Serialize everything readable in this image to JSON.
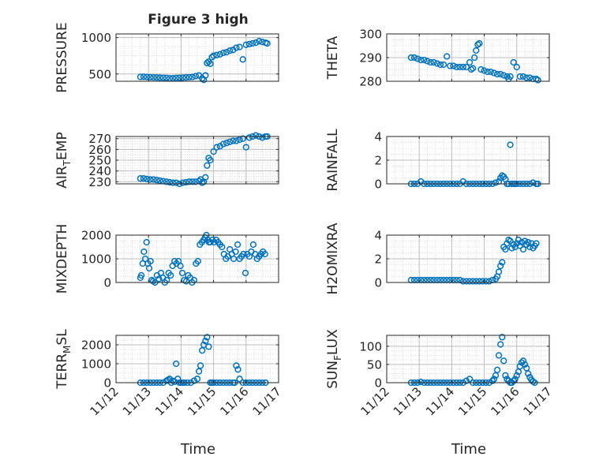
{
  "figure_title": "Figure 3 high",
  "chart_data": [
    {
      "type": "scatter",
      "ylabel": "PRESSURE",
      "ylabel_sub": "",
      "ylabel_tail": "",
      "ylim": [
        400,
        1050
      ],
      "yticks": [
        500,
        1000
      ],
      "xlim": [
        0,
        5
      ],
      "xticks": [
        "11/12",
        "11/13",
        "11/14",
        "11/15",
        "11/16",
        "11/17"
      ],
      "grid": true,
      "marker": "circle-open",
      "color": "#0072BD",
      "x": [
        0.75,
        0.85,
        0.95,
        1.05,
        1.15,
        1.25,
        1.35,
        1.45,
        1.55,
        1.65,
        1.75,
        1.85,
        1.95,
        2.05,
        2.15,
        2.25,
        2.35,
        2.45,
        2.55,
        2.65,
        2.7,
        2.75,
        2.8,
        2.85,
        2.9,
        2.95,
        3.0,
        3.1,
        3.2,
        3.3,
        3.4,
        3.5,
        3.6,
        3.7,
        3.8,
        3.9,
        4.0,
        4.1,
        4.2,
        4.3,
        4.4,
        4.5,
        4.6,
        4.65
      ],
      "y": [
        460,
        462,
        458,
        455,
        453,
        452,
        450,
        448,
        446,
        440,
        442,
        445,
        448,
        450,
        452,
        455,
        458,
        470,
        480,
        440,
        420,
        480,
        650,
        670,
        640,
        730,
        750,
        760,
        770,
        790,
        800,
        820,
        830,
        860,
        870,
        700,
        900,
        910,
        920,
        930,
        950,
        940,
        930,
        920
      ]
    },
    {
      "type": "scatter",
      "ylabel": "THETA",
      "ylabel_sub": "",
      "ylabel_tail": "",
      "ylim": [
        280,
        300
      ],
      "yticks": [
        280,
        290,
        300
      ],
      "xlim": [
        0,
        5
      ],
      "xticks": [
        "11/12",
        "11/13",
        "11/14",
        "11/15",
        "11/16",
        "11/17"
      ],
      "grid": true,
      "marker": "circle-open",
      "color": "#0072BD",
      "x": [
        0.75,
        0.85,
        0.95,
        1.05,
        1.15,
        1.25,
        1.35,
        1.45,
        1.55,
        1.65,
        1.75,
        1.85,
        1.95,
        2.05,
        2.15,
        2.25,
        2.35,
        2.45,
        2.55,
        2.6,
        2.65,
        2.7,
        2.75,
        2.8,
        2.85,
        2.9,
        3.0,
        3.1,
        3.2,
        3.3,
        3.4,
        3.5,
        3.6,
        3.7,
        3.75,
        3.8,
        3.9,
        4.0,
        4.1,
        4.2,
        4.3,
        4.4,
        4.5,
        4.6,
        4.65
      ],
      "y": [
        290,
        290,
        289.5,
        289,
        289,
        288.5,
        288,
        288,
        287.5,
        287,
        287,
        290.5,
        286.5,
        286.5,
        286,
        286,
        286,
        286,
        288,
        285,
        285.5,
        290,
        293,
        295.5,
        296,
        285,
        284.5,
        284,
        284,
        283.5,
        283,
        283,
        282.5,
        282,
        281,
        282,
        288,
        286,
        282,
        282,
        281.5,
        281.5,
        281,
        281,
        280.5
      ]
    },
    {
      "type": "scatter",
      "ylabel": "AIR",
      "ylabel_sub": "T",
      "ylabel_tail": "EMP",
      "ylim": [
        228,
        272
      ],
      "yticks": [
        230,
        240,
        250,
        260,
        270
      ],
      "xlim": [
        0,
        5
      ],
      "xticks": [
        "11/12",
        "11/13",
        "11/14",
        "11/15",
        "11/16",
        "11/17"
      ],
      "grid": true,
      "marker": "circle-open",
      "color": "#0072BD",
      "x": [
        0.75,
        0.85,
        0.95,
        1.05,
        1.15,
        1.25,
        1.35,
        1.45,
        1.55,
        1.65,
        1.75,
        1.85,
        1.95,
        2.05,
        2.15,
        2.25,
        2.35,
        2.45,
        2.55,
        2.6,
        2.65,
        2.7,
        2.75,
        2.8,
        2.85,
        2.9,
        3.0,
        3.1,
        3.2,
        3.3,
        3.4,
        3.5,
        3.6,
        3.7,
        3.8,
        3.9,
        4.0,
        4.1,
        4.2,
        4.3,
        4.4,
        4.5,
        4.6,
        4.65
      ],
      "y": [
        233,
        233,
        232.5,
        232,
        232,
        231.5,
        231,
        230.5,
        230,
        229.5,
        229,
        229,
        228,
        229,
        229.5,
        230,
        230,
        230,
        230.5,
        232,
        229,
        230,
        234,
        245,
        252,
        250,
        258,
        262,
        263,
        265,
        266,
        267,
        268,
        268,
        269,
        270,
        262,
        271,
        272,
        273,
        272,
        271,
        272,
        272
      ]
    },
    {
      "type": "scatter",
      "ylabel": "RAINFALL",
      "ylabel_sub": "",
      "ylabel_tail": "",
      "ylim": [
        0,
        4
      ],
      "yticks": [
        0,
        2,
        4
      ],
      "xlim": [
        0,
        5
      ],
      "xticks": [
        "11/12",
        "11/13",
        "11/14",
        "11/15",
        "11/16",
        "11/17"
      ],
      "grid": true,
      "marker": "circle-open",
      "color": "#0072BD",
      "x": [
        0.75,
        0.85,
        0.95,
        1.05,
        1.15,
        1.25,
        1.35,
        1.45,
        1.55,
        1.65,
        1.75,
        1.85,
        1.95,
        2.05,
        2.15,
        2.25,
        2.35,
        2.45,
        2.55,
        2.65,
        2.75,
        2.85,
        2.95,
        3.05,
        3.15,
        3.25,
        3.35,
        3.45,
        3.5,
        3.55,
        3.6,
        3.65,
        3.7,
        3.75,
        3.8,
        3.85,
        3.9,
        3.95,
        4.0,
        4.1,
        4.2,
        4.3,
        4.4,
        4.5,
        4.6,
        4.65
      ],
      "y": [
        0,
        0,
        0,
        0.2,
        0,
        0,
        0,
        0,
        0,
        0,
        0,
        0,
        0,
        0,
        0,
        0,
        0.2,
        0,
        0,
        0,
        0,
        0,
        0,
        0,
        0,
        0,
        0.1,
        0.2,
        0.5,
        0.7,
        0.6,
        0.4,
        0,
        0,
        3.3,
        0,
        0,
        0,
        0,
        0,
        0,
        0,
        0,
        0.1,
        0,
        0
      ]
    },
    {
      "type": "scatter",
      "ylabel": "MIXDEPTH",
      "ylabel_sub": "",
      "ylabel_tail": "",
      "ylim": [
        0,
        2000
      ],
      "yticks": [
        0,
        1000,
        2000
      ],
      "xlim": [
        0,
        5
      ],
      "xticks": [
        "11/12",
        "11/13",
        "11/14",
        "11/15",
        "11/16",
        "11/17"
      ],
      "grid": true,
      "marker": "circle-open",
      "color": "#0072BD",
      "x": [
        0.75,
        0.78,
        0.82,
        0.86,
        0.9,
        0.94,
        0.98,
        1.02,
        1.06,
        1.1,
        1.14,
        1.2,
        1.26,
        1.32,
        1.38,
        1.44,
        1.5,
        1.56,
        1.62,
        1.68,
        1.74,
        1.8,
        1.86,
        1.92,
        1.98,
        2.04,
        2.1,
        2.16,
        2.22,
        2.28,
        2.34,
        2.4,
        2.46,
        2.52,
        2.58,
        2.64,
        2.7,
        2.74,
        2.78,
        2.82,
        2.86,
        2.9,
        2.96,
        3.02,
        3.08,
        3.14,
        3.2,
        3.26,
        3.32,
        3.38,
        3.44,
        3.5,
        3.56,
        3.62,
        3.68,
        3.74,
        3.8,
        3.86,
        3.92,
        3.98,
        4.04,
        4.1,
        4.16,
        4.22,
        4.28,
        4.34,
        4.4,
        4.46,
        4.52,
        4.58
      ],
      "y": [
        200,
        300,
        800,
        1300,
        1000,
        1700,
        800,
        600,
        900,
        100,
        50,
        0,
        300,
        150,
        400,
        200,
        0,
        100,
        400,
        300,
        700,
        900,
        800,
        900,
        700,
        400,
        100,
        50,
        300,
        200,
        0,
        100,
        800,
        900,
        1600,
        1700,
        1800,
        1900,
        2000,
        1800,
        1700,
        1700,
        1800,
        1700,
        1800,
        1700,
        1600,
        1500,
        1200,
        1000,
        1100,
        1400,
        1200,
        1000,
        1300,
        1600,
        1000,
        1100,
        1200,
        400,
        1200,
        1100,
        1300,
        1600,
        1200,
        1000,
        1100,
        1200,
        1300,
        1200
      ]
    },
    {
      "type": "scatter",
      "ylabel": "H2OMIXRA",
      "ylabel_sub": "",
      "ylabel_tail": "",
      "ylim": [
        0,
        4
      ],
      "yticks": [
        0,
        2,
        4
      ],
      "xlim": [
        0,
        5
      ],
      "xticks": [
        "11/12",
        "11/13",
        "11/14",
        "11/15",
        "11/16",
        "11/17"
      ],
      "grid": true,
      "marker": "circle-open",
      "color": "#0072BD",
      "x": [
        0.75,
        0.85,
        0.95,
        1.05,
        1.15,
        1.25,
        1.35,
        1.45,
        1.55,
        1.65,
        1.75,
        1.85,
        1.95,
        2.05,
        2.15,
        2.25,
        2.35,
        2.45,
        2.55,
        2.65,
        2.75,
        2.85,
        2.95,
        3.05,
        3.15,
        3.25,
        3.35,
        3.4,
        3.45,
        3.5,
        3.55,
        3.6,
        3.65,
        3.7,
        3.75,
        3.8,
        3.85,
        3.9,
        3.95,
        4.0,
        4.05,
        4.1,
        4.15,
        4.2,
        4.25,
        4.3,
        4.35,
        4.4,
        4.45,
        4.5,
        4.55,
        4.6
      ],
      "y": [
        0.2,
        0.2,
        0.2,
        0.2,
        0.2,
        0.2,
        0.2,
        0.2,
        0.2,
        0.2,
        0.2,
        0.2,
        0.2,
        0.2,
        0.2,
        0.2,
        0.1,
        0.1,
        0.1,
        0.1,
        0.1,
        0.1,
        0.1,
        0.1,
        0.1,
        0.2,
        0.3,
        0.5,
        0.9,
        1.4,
        1.7,
        3.0,
        2.8,
        3.3,
        3.6,
        3.5,
        2.9,
        3.2,
        3.0,
        3.3,
        3.6,
        3.1,
        3.4,
        2.8,
        3.5,
        3.2,
        3.4,
        3.0,
        3.3,
        2.9,
        3.1,
        3.3
      ]
    },
    {
      "type": "scatter",
      "ylabel": "TERR",
      "ylabel_sub": "M",
      "ylabel_tail": "SL",
      "ylim": [
        0,
        2500
      ],
      "yticks": [
        0,
        1000,
        2000
      ],
      "xlim": [
        0,
        5
      ],
      "xticks": [
        "11/12",
        "11/13",
        "11/14",
        "11/15",
        "11/16",
        "11/17"
      ],
      "grid": true,
      "marker": "circle-open",
      "color": "#0072BD",
      "x": [
        0.75,
        0.85,
        0.95,
        1.05,
        1.15,
        1.25,
        1.35,
        1.45,
        1.55,
        1.6,
        1.65,
        1.7,
        1.75,
        1.8,
        1.85,
        1.9,
        1.95,
        2.0,
        2.05,
        2.1,
        2.2,
        2.3,
        2.4,
        2.5,
        2.55,
        2.6,
        2.65,
        2.7,
        2.75,
        2.8,
        2.85,
        2.9,
        2.95,
        3.0,
        3.1,
        3.2,
        3.3,
        3.4,
        3.5,
        3.6,
        3.65,
        3.7,
        3.75,
        3.8,
        3.9,
        4.0,
        4.1,
        4.2,
        4.3,
        4.4,
        4.5,
        4.6
      ],
      "y": [
        0,
        0,
        0,
        0,
        0,
        0,
        0,
        0,
        100,
        150,
        200,
        0,
        100,
        50,
        1000,
        200,
        0,
        0,
        0,
        0,
        0,
        0,
        100,
        200,
        600,
        900,
        1700,
        2000,
        2200,
        2400,
        1900,
        0,
        0,
        0,
        0,
        0,
        0,
        0,
        0,
        0,
        0,
        900,
        700,
        200,
        0,
        0,
        0,
        0,
        0,
        0,
        0,
        0
      ]
    },
    {
      "type": "scatter",
      "ylabel": "SUN",
      "ylabel_sub": "F",
      "ylabel_tail": "LUX",
      "ylim": [
        0,
        130
      ],
      "yticks": [
        0,
        50,
        100
      ],
      "xlim": [
        0,
        5
      ],
      "xticks": [
        "11/12",
        "11/13",
        "11/14",
        "11/15",
        "11/16",
        "11/17"
      ],
      "grid": true,
      "marker": "circle-open",
      "color": "#0072BD",
      "x": [
        0.75,
        0.85,
        0.95,
        1.05,
        1.15,
        1.25,
        1.35,
        1.45,
        1.55,
        1.65,
        1.75,
        1.85,
        1.95,
        2.05,
        2.15,
        2.25,
        2.35,
        2.45,
        2.55,
        2.65,
        2.75,
        2.85,
        2.95,
        3.05,
        3.15,
        3.25,
        3.3,
        3.35,
        3.4,
        3.45,
        3.5,
        3.55,
        3.6,
        3.65,
        3.7,
        3.75,
        3.8,
        3.85,
        3.9,
        3.95,
        4.0,
        4.05,
        4.1,
        4.15,
        4.2,
        4.25,
        4.3,
        4.35,
        4.4,
        4.45,
        4.5,
        4.55
      ],
      "y": [
        0,
        0,
        0,
        2,
        0,
        0,
        0,
        0,
        0,
        0,
        0,
        0,
        0,
        0,
        0,
        0,
        0,
        5,
        10,
        0,
        0,
        0,
        0,
        0,
        0,
        5,
        10,
        20,
        35,
        75,
        105,
        125,
        60,
        20,
        10,
        5,
        0,
        0,
        5,
        10,
        20,
        30,
        45,
        55,
        60,
        50,
        40,
        25,
        15,
        8,
        3,
        0
      ]
    }
  ],
  "x_axis_label": "Time"
}
